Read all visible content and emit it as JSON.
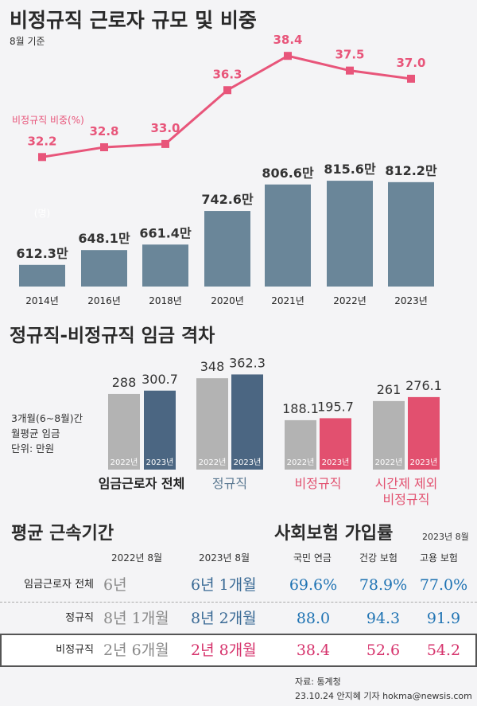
{
  "title": "비정규직 근로자 규모 및 비중",
  "subtitle": "8월 기준",
  "section2_title": "정규직-비정규직 임금 격차",
  "section3_title_left": "평균 근속기간",
  "section3_title_right": "사회보험 가입률",
  "section3_right_date": "2023년 8월",
  "colors": {
    "bar_gray_blue": "#6a8699",
    "line_pink": "#e8557a",
    "bar_light": "#b3b3b3",
    "bar_dark": "#4b6682",
    "bar_pink": "#e2506f",
    "text_blue": "#1f73b3",
    "text_pink": "#d6336c"
  },
  "chart_data": [
    {
      "type": "bar",
      "categories": [
        "2014년",
        "2016년",
        "2018년",
        "2020년",
        "2021년",
        "2022년",
        "2023년"
      ],
      "series": [
        {
          "values": [
            612.3,
            648.1,
            661.4,
            742.6,
            806.6,
            815.6,
            812.2
          ],
          "labels": [
            "612.3만",
            "648.1만",
            "661.4만",
            "742.6만",
            "806.6만",
            "815.6만",
            "812.2만"
          ]
        }
      ],
      "unit_label": "(명)",
      "ylim": [
        0,
        900
      ]
    },
    {
      "type": "line",
      "categories": [
        "2014년",
        "2016년",
        "2018년",
        "2020년",
        "2021년",
        "2022년",
        "2023년"
      ],
      "series": [
        {
          "name": "비정규직 비중(%)",
          "values": [
            32.2,
            32.8,
            33.0,
            36.3,
            38.4,
            37.5,
            37.0
          ],
          "labels": [
            "32.2",
            "32.8",
            "33.0",
            "36.3",
            "38.4",
            "37.5",
            "37.0"
          ]
        }
      ],
      "ylim": [
        30,
        39
      ]
    },
    {
      "type": "bar",
      "categories": [
        "임금근로자 전체",
        "정규직",
        "비정규직",
        "시간제 제외 비정규직"
      ],
      "category_lines": [
        [
          "임금근로자 전체"
        ],
        [
          "정규직"
        ],
        [
          "비정규직"
        ],
        [
          "시간제 제외",
          "비정규직"
        ]
      ],
      "series": [
        {
          "name": "2022년",
          "values": [
            288,
            348,
            188.1,
            261
          ],
          "labels": [
            "288",
            "348",
            "188.1",
            "261"
          ]
        },
        {
          "name": "2023년",
          "values": [
            300.7,
            362.3,
            195.7,
            276.1
          ],
          "labels": [
            "300.7",
            "362.3",
            "195.7",
            "276.1"
          ]
        }
      ],
      "note_lines": [
        "3개월(6~8월)간",
        "월평균 임금",
        "단위: 만원"
      ],
      "ylim": [
        0,
        400
      ]
    },
    {
      "type": "table",
      "columns": [
        "",
        "2022년 8월",
        "2023년 8월",
        "국민 연금",
        "건강 보험",
        "고용 보험"
      ],
      "rows": [
        {
          "label": "임금근로자 전체",
          "y2022": "6년",
          "y2023": "6년 1개월",
          "pension": "69.6%",
          "health": "78.9%",
          "employment": "77.0%"
        },
        {
          "label": "정규직",
          "y2022": "8년 1개월",
          "y2023": "8년 2개월",
          "pension": "88.0",
          "health": "94.3",
          "employment": "91.9"
        },
        {
          "label": "비정규직",
          "y2022": "2년 6개월",
          "y2023": "2년 8개월",
          "pension": "38.4",
          "health": "52.6",
          "employment": "54.2"
        }
      ]
    }
  ],
  "source": "자료: 통계청",
  "credit": "23.10.24 안지혜 기자 hokma@newsis.com"
}
